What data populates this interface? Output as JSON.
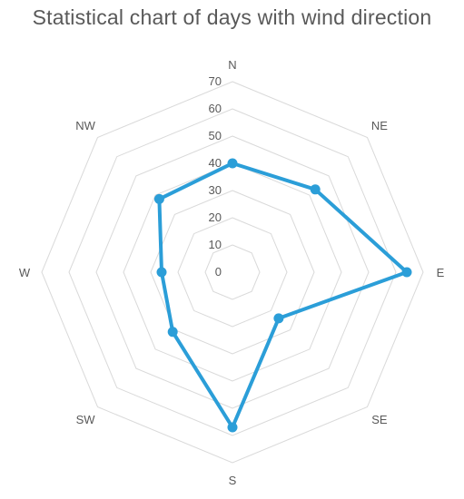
{
  "chart_data": {
    "type": "radar",
    "title": "Statistical chart of days with wind direction",
    "categories": [
      "N",
      "NE",
      "E",
      "SE",
      "S",
      "SW",
      "W",
      "NW"
    ],
    "series": [
      {
        "values": [
          40,
          43,
          64,
          24,
          57,
          31,
          26,
          38
        ]
      }
    ],
    "r_ticks": [
      0,
      10,
      20,
      30,
      40,
      50,
      60,
      70
    ],
    "rlim": [
      0,
      70
    ],
    "grid": true,
    "legend": "none",
    "colors": {
      "series": "#2b9ed8",
      "grid": "#d9d9d9",
      "text": "#595959"
    }
  }
}
